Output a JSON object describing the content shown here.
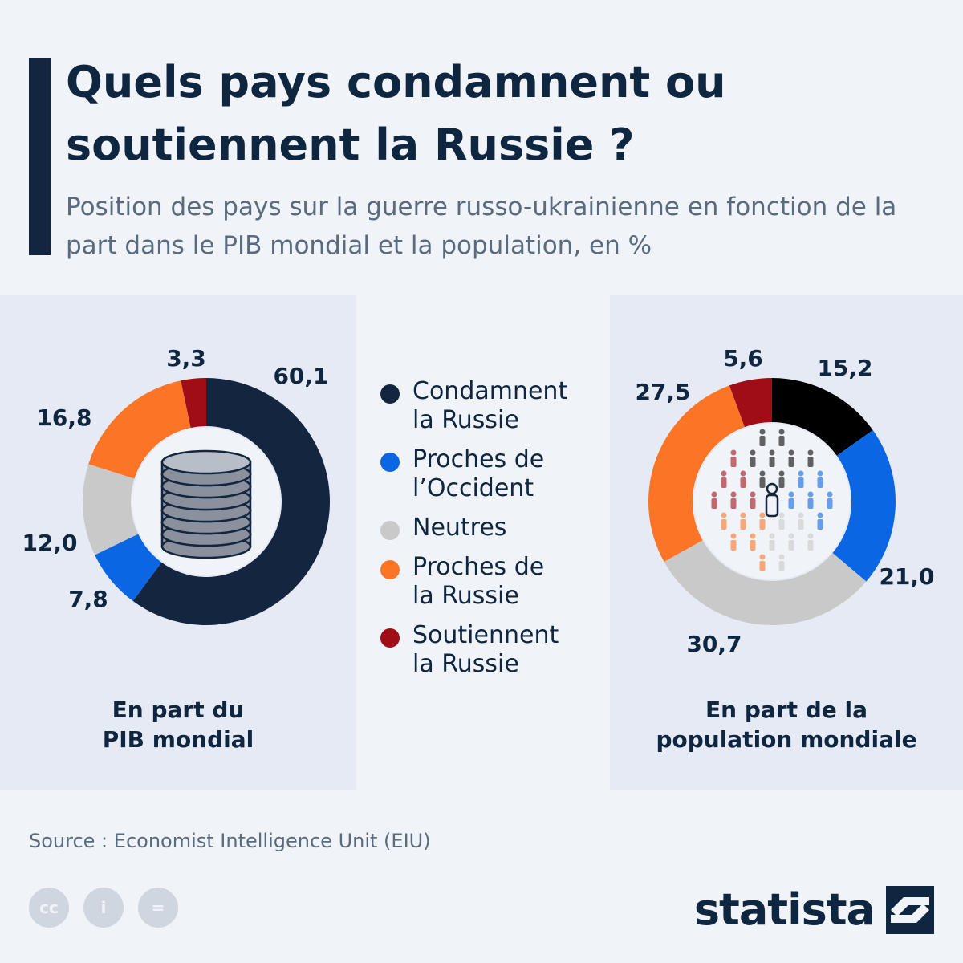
{
  "header": {
    "title": "Quels pays condamnent ou soutiennent la Russie ?",
    "subtitle": "Position des pays sur la guerre russo-ukrainienne en fonction de la part dans le PIB mondial et la population, en %"
  },
  "legend": [
    {
      "lines": [
        "Condamnent",
        "la Russie"
      ],
      "color": "#13253f"
    },
    {
      "lines": [
        "Proches de",
        "l’Occident"
      ],
      "color": "#0b66e4"
    },
    {
      "lines": [
        "Neutres"
      ],
      "color": "#c9c9c9"
    },
    {
      "lines": [
        "Proches de",
        "la Russie"
      ],
      "color": "#fc7527"
    },
    {
      "lines": [
        "Soutiennent",
        "la Russie"
      ],
      "color": "#a10d17"
    }
  ],
  "chart_data": [
    {
      "type": "pie",
      "variant": "donut",
      "title": "En part du PIB mondial",
      "title_lines": [
        "En part du",
        "PIB mondial"
      ],
      "center_icon": "coin-stack-icon",
      "categories": [
        "Condamnent la Russie",
        "Proches de l’Occident",
        "Neutres",
        "Proches de la Russie",
        "Soutiennent la Russie"
      ],
      "values": [
        60.1,
        7.8,
        12.0,
        16.8,
        3.3
      ],
      "labels": [
        "60,1",
        "7,8",
        "12,0",
        "16,8",
        "3,3"
      ],
      "colors": [
        "#13253f",
        "#0b66e4",
        "#c9c9c9",
        "#fc7527",
        "#a10d17"
      ]
    },
    {
      "type": "pie",
      "variant": "donut",
      "title": "En part de la population mondiale",
      "title_lines": [
        "En part de la",
        "population mondiale"
      ],
      "center_icon": "people-crowd-icon",
      "categories": [
        "Condamnent la Russie",
        "Proches de l’Occident",
        "Neutres",
        "Proches de la Russie",
        "Soutiennent la Russie"
      ],
      "values": [
        15.2,
        21.0,
        30.7,
        27.5,
        5.6
      ],
      "labels": [
        "15,2",
        "21,0",
        "30,7",
        "27,5",
        "5,6"
      ],
      "colors": [
        "#000000",
        "#0b66e4",
        "#c9c9c9",
        "#fc7527",
        "#a10d17"
      ]
    }
  ],
  "footer": {
    "source": "Source : Economist Intelligence Unit (EIU)",
    "license_icons": [
      {
        "name": "cc-icon",
        "glyph": "cc"
      },
      {
        "name": "attribution-icon",
        "glyph": "i"
      },
      {
        "name": "no-derivatives-icon",
        "glyph": "="
      }
    ],
    "brand": "statista"
  }
}
